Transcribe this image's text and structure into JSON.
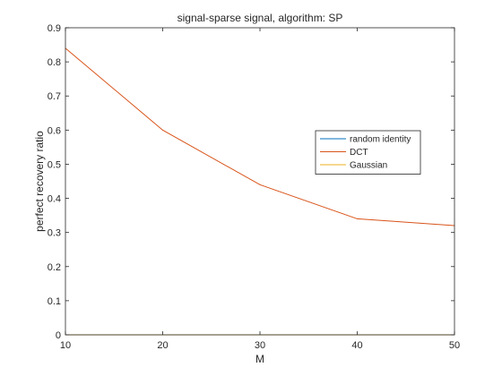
{
  "chart_data": {
    "type": "line",
    "title": "signal-sparse signal, algorithm: SP",
    "xlabel": "M",
    "ylabel": "perfect recovery ratio",
    "x": [
      10,
      20,
      30,
      40,
      50
    ],
    "xlim": [
      10,
      50
    ],
    "ylim": [
      0,
      0.9
    ],
    "xticks": [
      "10",
      "20",
      "30",
      "40",
      "50"
    ],
    "yticks": [
      "0",
      "0.1",
      "0.2",
      "0.3",
      "0.4",
      "0.5",
      "0.6",
      "0.7",
      "0.8",
      "0.9"
    ],
    "grid": false,
    "legend_position": "right",
    "series": [
      {
        "name": "random identity",
        "color": "#0072BD",
        "values": [
          0,
          0,
          0,
          0,
          0
        ]
      },
      {
        "name": "DCT",
        "color": "#D95319",
        "values": [
          0.84,
          0.6,
          0.44,
          0.34,
          0.32
        ]
      },
      {
        "name": "Gaussian",
        "color": "#EDB120",
        "values": [
          0,
          0,
          0,
          0,
          0
        ]
      }
    ]
  }
}
